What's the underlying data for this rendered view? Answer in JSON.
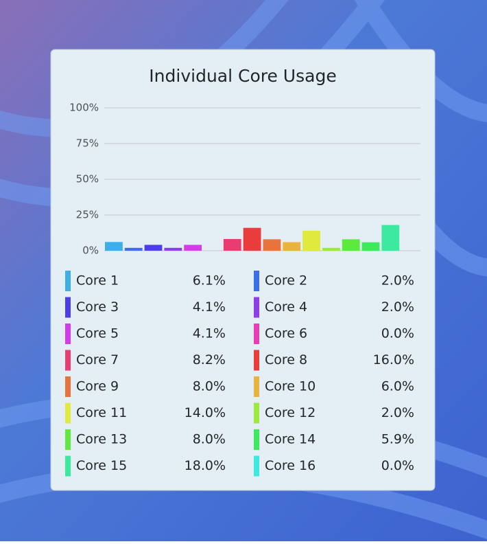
{
  "chart_data": {
    "type": "bar",
    "title": "Individual Core Usage",
    "categories": [
      "Core 1",
      "Core 2",
      "Core 3",
      "Core 4",
      "Core 5",
      "Core 6",
      "Core 7",
      "Core 8",
      "Core 9",
      "Core 10",
      "Core 11",
      "Core 12",
      "Core 13",
      "Core 14",
      "Core 15",
      "Core 16"
    ],
    "values": [
      6.1,
      2.0,
      4.1,
      2.0,
      4.1,
      0.0,
      8.2,
      16.0,
      8.0,
      6.0,
      14.0,
      2.0,
      8.0,
      5.9,
      18.0,
      0.0
    ],
    "value_labels": [
      "6.1%",
      "2.0%",
      "4.1%",
      "2.0%",
      "4.1%",
      "0.0%",
      "8.2%",
      "16.0%",
      "8.0%",
      "6.0%",
      "14.0%",
      "2.0%",
      "8.0%",
      "5.9%",
      "18.0%",
      "0.0%"
    ],
    "colors": [
      "#3daee9",
      "#3d6de9",
      "#4c3ee8",
      "#8e3de9",
      "#d03de9",
      "#e93db4",
      "#e93d72",
      "#e93d3d",
      "#e9733d",
      "#e9b43d",
      "#e0e93d",
      "#9ee93d",
      "#5de93d",
      "#3de95e",
      "#3de99f",
      "#3de9e0"
    ],
    "ylim": [
      0,
      100
    ],
    "yticks": [
      {
        "value": 0,
        "label": "0%"
      },
      {
        "value": 25,
        "label": "25%"
      },
      {
        "value": 50,
        "label": "50%"
      },
      {
        "value": 75,
        "label": "75%"
      },
      {
        "value": 100,
        "label": "100%"
      }
    ],
    "grid": true
  }
}
